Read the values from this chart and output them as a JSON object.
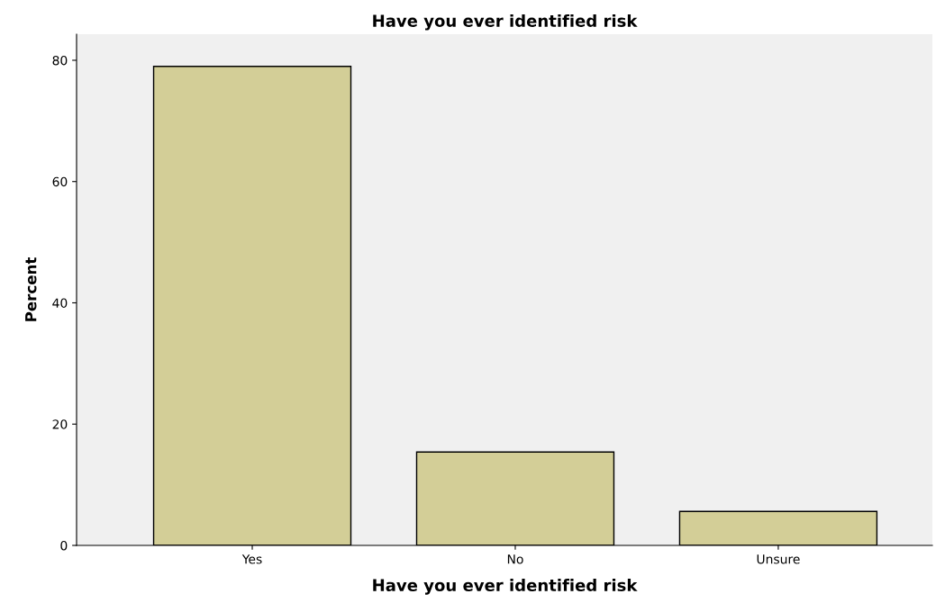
{
  "chart_data": {
    "type": "bar",
    "title": "Have you ever identified risk",
    "xlabel": "Have you ever identified risk",
    "ylabel": "Percent",
    "categories": [
      "Yes",
      "No",
      "Unsure"
    ],
    "values": [
      79.0,
      15.4,
      5.6
    ],
    "color": "#d3ce97",
    "ylim": [
      0,
      84.3
    ],
    "yticks": [
      0,
      20,
      40,
      60,
      80
    ],
    "grid": false
  }
}
